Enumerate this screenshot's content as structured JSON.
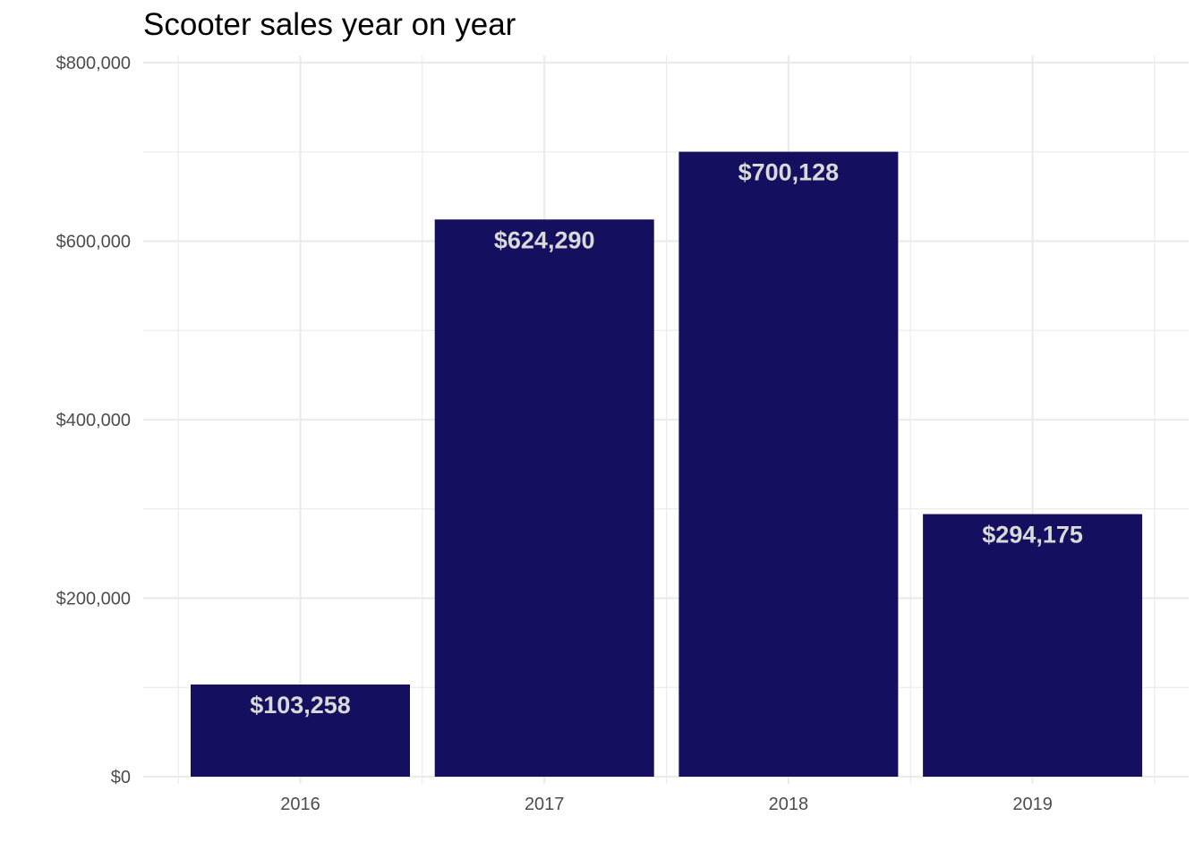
{
  "chart_data": {
    "type": "bar",
    "title": "Scooter sales year on year",
    "xlabel": "",
    "ylabel": "",
    "categories": [
      "2016",
      "2017",
      "2018",
      "2019"
    ],
    "values": [
      103258,
      624290,
      700128,
      294175
    ],
    "value_labels": [
      "$103,258",
      "$624,290",
      "$700,128",
      "$294,175"
    ],
    "ylim": [
      0,
      800000
    ],
    "yticks": [
      0,
      200000,
      400000,
      600000,
      800000
    ],
    "ytick_labels": [
      "$0",
      "$200,000",
      "$400,000",
      "$600,000",
      "$800,000"
    ],
    "grid": true,
    "legend": "none",
    "colors": {
      "bar": "#140f5e",
      "label": "#d9d9d9",
      "grid": "#ebebeb",
      "tick_text": "#4d4d4d"
    }
  }
}
